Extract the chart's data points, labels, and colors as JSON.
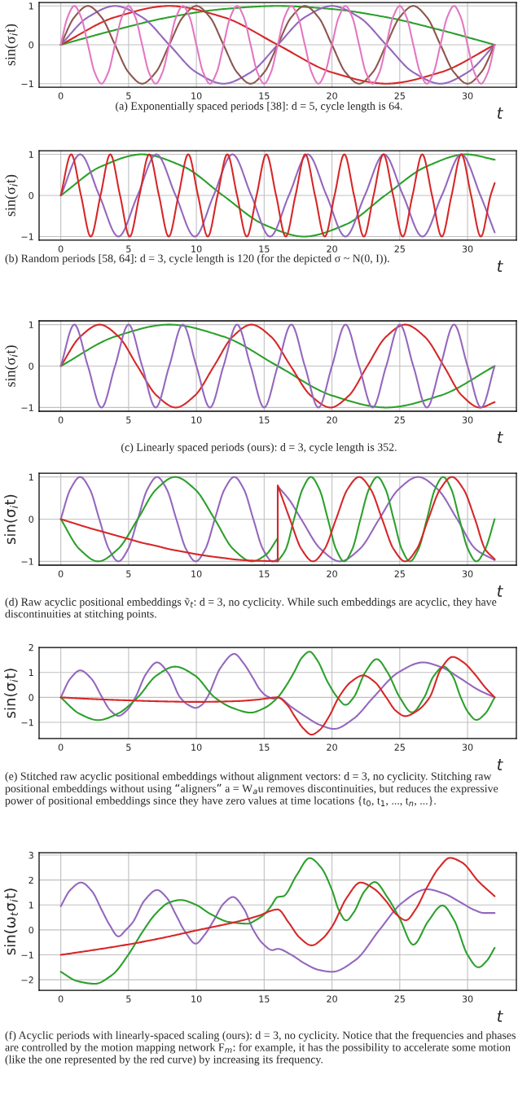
{
  "chart_data": [
    {
      "type": "line",
      "xlabel": "t",
      "ylabel": "sin(σ$_{i}$t)",
      "xlim": [
        -1.6,
        33.6
      ],
      "xticks": [
        0,
        5,
        10,
        15,
        20,
        25,
        30
      ],
      "ylim": [
        -1.09,
        1.09
      ],
      "yticks": [
        -1,
        0,
        1
      ],
      "grid": true,
      "annotations": [
        "(a) Exponentially spaced periods [38]: d = 5, cycle length is 64."
      ],
      "series": [
        {
          "color": "#2ca02c",
          "x": [
            0,
            4,
            8,
            12,
            16,
            20,
            24,
            28,
            32
          ],
          "values": [
            0,
            0.38,
            0.71,
            0.92,
            1,
            0.92,
            0.71,
            0.38,
            0
          ]
        },
        {
          "color": "#d62728",
          "x": [
            0,
            4,
            8,
            12,
            16,
            20,
            24,
            28,
            32
          ],
          "values": [
            0,
            0.71,
            1,
            0.71,
            0,
            -0.71,
            -1,
            -0.71,
            0
          ]
        },
        {
          "color": "#9467bd",
          "x": [
            0,
            2,
            4,
            6,
            8,
            10,
            12,
            14,
            16,
            18,
            20,
            22,
            24,
            26,
            28,
            30,
            32
          ],
          "values": [
            0,
            0.71,
            1,
            0.71,
            0,
            -0.71,
            -1,
            -0.71,
            0,
            0.71,
            1,
            0.71,
            0,
            -0.71,
            -1,
            -0.71,
            0
          ]
        },
        {
          "color": "#8c564b",
          "x": [
            0,
            1,
            2,
            3,
            4,
            5,
            6,
            7,
            8,
            9,
            10,
            11,
            12,
            13,
            14,
            15,
            16,
            17,
            18,
            19,
            20,
            21,
            22,
            23,
            24,
            25,
            26,
            27,
            28,
            29,
            30,
            31,
            32
          ],
          "values": [
            0,
            0.71,
            1,
            0.71,
            0,
            -0.71,
            -1,
            -0.71,
            0,
            0.71,
            1,
            0.71,
            0,
            -0.71,
            -1,
            -0.71,
            0,
            0.71,
            1,
            0.71,
            0,
            -0.71,
            -1,
            -0.71,
            0,
            0.71,
            1,
            0.71,
            0,
            -0.71,
            -1,
            -0.71,
            0
          ]
        },
        {
          "color": "#e377c2",
          "x": [
            0,
            0.5,
            1,
            1.5,
            2,
            2.5,
            3,
            3.5,
            4,
            4.5,
            5,
            5.5,
            6,
            6.5,
            7,
            7.5,
            8,
            8.5,
            9,
            9.5,
            10,
            10.5,
            11,
            11.5,
            12,
            12.5,
            13,
            13.5,
            14,
            14.5,
            15,
            15.5,
            16,
            16.5,
            17,
            17.5,
            18,
            18.5,
            19,
            19.5,
            20,
            20.5,
            21,
            21.5,
            22,
            22.5,
            23,
            23.5,
            24,
            24.5,
            25,
            25.5,
            26,
            26.5,
            27,
            27.5,
            28,
            28.5,
            29,
            29.5,
            30,
            30.5,
            31,
            31.5,
            32
          ],
          "values": [
            0,
            0.71,
            1,
            0.71,
            0,
            -0.71,
            -1,
            -0.71,
            0,
            0.71,
            1,
            0.71,
            0,
            -0.71,
            -1,
            -0.71,
            0,
            0.71,
            1,
            0.71,
            0,
            -0.71,
            -1,
            -0.71,
            0,
            0.71,
            1,
            0.71,
            0,
            -0.71,
            -1,
            -0.71,
            0,
            0.71,
            1,
            0.71,
            0,
            -0.71,
            -1,
            -0.71,
            0,
            0.71,
            1,
            0.71,
            0,
            -0.71,
            -1,
            -0.71,
            0,
            0.71,
            1,
            0.71,
            0,
            -0.71,
            -1,
            -0.71,
            0,
            0.71,
            1,
            0.71,
            0,
            -0.71,
            -1,
            -0.71,
            0
          ]
        }
      ]
    },
    {
      "type": "line",
      "xlabel": "t",
      "ylabel": "sin(σ$_{i}$t)",
      "xlim": [
        -1.6,
        33.6
      ],
      "xticks": [
        0,
        5,
        10,
        15,
        20,
        25,
        30
      ],
      "ylim": [
        -1.09,
        1.09
      ],
      "yticks": [
        -1,
        0,
        1
      ],
      "grid": true,
      "annotations": [
        "(b) Random periods [58, 64]: d = 3, cycle length is 120 (for the depicted σ ~ N(0, I))."
      ],
      "series": [
        {
          "color": "#2ca02c",
          "x": [
            0,
            3,
            5.98,
            9,
            11.96,
            15,
            17.94,
            21,
            23.92,
            27,
            29.9,
            32
          ],
          "values": [
            0,
            0.71,
            1,
            0.71,
            0,
            -0.71,
            -1,
            -0.71,
            0,
            0.71,
            1,
            0.87
          ]
        },
        {
          "color": "#9467bd",
          "x": [
            0,
            1.43,
            2.84,
            4.25,
            5.66,
            7.05,
            8.47,
            9.88,
            11.27,
            12.66,
            14.05,
            15.43,
            16.82,
            18.21,
            19.6,
            20.99,
            22.42,
            23.84,
            25.25,
            26.67,
            28.1,
            29.54,
            30.95,
            32
          ],
          "values": [
            0,
            1,
            0,
            -1,
            0,
            1,
            0,
            -1,
            0,
            1,
            0,
            -1,
            0,
            1,
            0,
            -1,
            0,
            1,
            0,
            -1,
            0,
            1,
            0,
            -0.9
          ]
        },
        {
          "color": "#d62728",
          "x": [
            0,
            0.77,
            1.49,
            2.21,
            2.93,
            3.65,
            4.37,
            5.08,
            5.8,
            6.52,
            7.24,
            7.96,
            8.68,
            9.4,
            10.12,
            10.84,
            11.56,
            12.28,
            13.0,
            13.72,
            14.44,
            15.16,
            15.88,
            16.59,
            17.31,
            18.03,
            18.75,
            19.47,
            20.19,
            20.91,
            21.63,
            22.35,
            23.07,
            23.79,
            24.51,
            25.22,
            25.94,
            26.66,
            27.38,
            28.1,
            28.82,
            29.54,
            30.26,
            30.98,
            31.7,
            32
          ],
          "values": [
            0,
            1,
            0,
            -1,
            0,
            1,
            0,
            -1,
            0,
            1,
            0,
            -1,
            0,
            1,
            0,
            -1,
            0,
            1,
            0,
            -1,
            0,
            1,
            0,
            -1,
            0,
            1,
            0,
            -1,
            0,
            1,
            0,
            -1,
            0,
            1,
            0,
            -1,
            0,
            1,
            0,
            -1,
            0,
            1,
            0,
            -1,
            0,
            0.3
          ]
        }
      ]
    },
    {
      "type": "line",
      "xlabel": "t",
      "ylabel": "sin(σ$_{i}$t)",
      "xlim": [
        -1.6,
        33.6
      ],
      "xticks": [
        0,
        5,
        10,
        15,
        20,
        25,
        30
      ],
      "ylim": [
        -1.09,
        1.09
      ],
      "yticks": [
        -1,
        0,
        1
      ],
      "grid": true,
      "annotations": [
        "(c) Linearly spaced periods (ours): d = 3, cycle length is 352."
      ],
      "series": [
        {
          "color": "#2ca02c",
          "x": [
            0,
            4,
            8,
            12,
            16,
            20,
            24,
            28,
            32
          ],
          "values": [
            0,
            0.71,
            1,
            0.71,
            0,
            -0.71,
            -1,
            -0.71,
            0
          ]
        },
        {
          "color": "#d62728",
          "x": [
            0,
            1.44,
            2.87,
            4.26,
            5.65,
            7.07,
            8.48,
            9.89,
            11.3,
            12.68,
            14.06,
            15.5,
            16.95,
            18.43,
            19.9,
            21.25,
            22.6,
            24.0,
            25.4,
            26.83,
            28.25,
            29.58,
            30.9,
            32
          ],
          "values": [
            0,
            0.71,
            1,
            0.71,
            0,
            -0.71,
            -1,
            -0.71,
            0,
            0.71,
            1,
            0.71,
            0,
            -0.71,
            -1,
            -0.71,
            0,
            0.71,
            1,
            0.71,
            0,
            -0.71,
            -1,
            -0.87
          ]
        },
        {
          "color": "#9467bd",
          "x": [
            0,
            1,
            2,
            3,
            4,
            5,
            6,
            7,
            8,
            9,
            10,
            11,
            12,
            13,
            14,
            15,
            16,
            17,
            18,
            19,
            20,
            21,
            22,
            23,
            24,
            25,
            26,
            27,
            28,
            29,
            30,
            31,
            32
          ],
          "values": [
            0,
            1,
            0,
            -1,
            0,
            1,
            0,
            -1,
            0,
            1,
            0,
            -1,
            0,
            1,
            0,
            -1,
            0,
            1,
            0,
            -1,
            0,
            1,
            0,
            -1,
            0,
            1,
            0,
            -1,
            0,
            1,
            0,
            -1,
            0
          ]
        }
      ]
    },
    {
      "type": "line",
      "xlabel": "t",
      "ylabel": "sin(σ$_{i}$t)",
      "xlim": [
        -1.6,
        33.6
      ],
      "xticks": [
        0,
        5,
        10,
        15,
        20,
        25,
        30
      ],
      "ylim": [
        -1.09,
        1.09
      ],
      "yticks": [
        -1,
        0,
        1
      ],
      "grid": true,
      "annotations": [
        "(d) Raw acyclic positional embeddings ṽ$_{t}$: d = 3, no cyclicity. While such embeddings are acyclic, they have discontinuities at stitching points."
      ],
      "series": [
        {
          "color": "#9467bd",
          "x": [
            0,
            0.71,
            1.43,
            2.14,
            2.84,
            3.55,
            4.25,
            4.96,
            5.68,
            6.39,
            7.1,
            7.81,
            8.52,
            9.24,
            9.95,
            10.66,
            11.36,
            12.08,
            12.8,
            13.5,
            14.2,
            14.91,
            15.62,
            16,
            16,
            16.87,
            17.73,
            19.17,
            20.6,
            22.04,
            23.48,
            24.92,
            26.35,
            27.79,
            29.23,
            30.6,
            32
          ],
          "values": [
            0,
            0.71,
            1,
            0.71,
            0,
            -0.71,
            -1,
            -0.71,
            0,
            0.71,
            1,
            0.71,
            0,
            -0.71,
            -1,
            -0.71,
            0,
            0.71,
            1,
            0.71,
            0,
            -0.71,
            -1,
            -0.95,
            0.78,
            0.45,
            0,
            -0.71,
            -1,
            -0.71,
            0,
            0.71,
            1,
            0.71,
            0,
            -0.71,
            -0.97
          ]
        },
        {
          "color": "#2ca02c",
          "x": [
            0,
            1.38,
            2.75,
            4.21,
            5.67,
            7.05,
            8.43,
            9.89,
            11.35,
            12.72,
            14.1,
            15.1,
            16,
            16,
            16.6,
            17.2,
            17.83,
            18.45,
            19.07,
            19.7,
            20.3,
            20.9,
            21.5,
            22.1,
            22.73,
            23.35,
            23.95,
            24.55,
            25.15,
            25.75,
            26.38,
            27,
            27.6,
            28.2,
            28.8,
            29.4,
            30.03,
            30.65,
            31.3,
            32
          ],
          "values": [
            0,
            -0.71,
            -1,
            -0.71,
            0,
            0.71,
            1,
            0.71,
            0,
            -0.71,
            -1,
            -0.85,
            -0.45,
            -1,
            -0.71,
            0,
            0.71,
            1,
            0.71,
            0,
            -0.71,
            -1,
            -0.71,
            0,
            0.71,
            1,
            0.71,
            0,
            -0.71,
            -1,
            -0.71,
            0,
            0.71,
            1,
            0.71,
            0,
            -0.71,
            -1,
            -0.71,
            0
          ]
        },
        {
          "color": "#d62728",
          "x": [
            0,
            1,
            2,
            3,
            4,
            5,
            6,
            7,
            8,
            9,
            10,
            11,
            12,
            13,
            14,
            15,
            16,
            16,
            16.9,
            17.75,
            18.6,
            19.45,
            20.3,
            21.15,
            22.0,
            22.85,
            23.7,
            24.55,
            25.4,
            26.25,
            27.1,
            27.98,
            28.85,
            29.7,
            30.55,
            31.3,
            32
          ],
          "values": [
            0,
            -0.1,
            -0.2,
            -0.29,
            -0.38,
            -0.47,
            -0.56,
            -0.63,
            -0.71,
            -0.77,
            -0.83,
            -0.88,
            -0.92,
            -0.96,
            -0.98,
            -0.99,
            -1,
            0.8,
            0,
            -0.71,
            -1,
            -0.71,
            0,
            0.71,
            1,
            0.71,
            0,
            -0.71,
            -1,
            -0.71,
            0,
            0.71,
            1,
            0.71,
            0,
            -0.71,
            -0.95
          ]
        }
      ]
    },
    {
      "type": "line",
      "xlabel": "t",
      "ylabel": "sin(σ$_{i}$t)",
      "xlim": [
        -1.6,
        33.6
      ],
      "xticks": [
        0,
        5,
        10,
        15,
        20,
        25,
        30
      ],
      "ylim": [
        -1.65,
        2.0
      ],
      "yticks": [
        -1,
        0,
        1,
        2
      ],
      "grid": true,
      "annotations": [
        "(e) Stitched raw acyclic positional embeddings without alignment vectors: d = 3, no cyclicity. Stitching raw positional embeddings without using “aligners” a = W$_{a}$u removes discontinuities, but reduces the expressive power of positional embeddings since they have zero values at time locations {t$_{0}$, t$_{1}$, ..., t$_{n}$, ...}."
      ],
      "series": [
        {
          "color": "#9467bd",
          "x": [
            0,
            0.7,
            1.43,
            2.25,
            3.05,
            3.65,
            4.25,
            4.9,
            5.5,
            6.3,
            7.1,
            7.95,
            8.8,
            9.4,
            9.95,
            10.4,
            10.8,
            11.8,
            12.8,
            13.5,
            14.2,
            14.7,
            15.2,
            15.7,
            16,
            17,
            18,
            19.1,
            20.15,
            21.6,
            23.05,
            24.9,
            26.7,
            28.1,
            29.5,
            30.8,
            32
          ],
          "values": [
            0,
            0.75,
            1.08,
            0.75,
            0,
            -0.52,
            -0.74,
            -0.5,
            0,
            0.95,
            1.4,
            0.95,
            0,
            -0.3,
            -0.42,
            -0.3,
            0,
            1.2,
            1.74,
            1.35,
            0.75,
            0.3,
            0.05,
            -0.05,
            0,
            -0.38,
            -0.75,
            -1.1,
            -1.26,
            -0.85,
            0,
            1.0,
            1.4,
            1.2,
            0.75,
            0.3,
            0
          ]
        },
        {
          "color": "#2ca02c",
          "x": [
            0,
            1.37,
            2.75,
            4.2,
            5.67,
            7.05,
            8.43,
            9.9,
            11.35,
            12.7,
            14.0,
            15.0,
            16,
            16.6,
            17.2,
            17.8,
            18.35,
            18.9,
            19.7,
            20.4,
            21.0,
            21.6,
            22.45,
            23.3,
            24.1,
            25.0,
            25.9,
            26.8,
            27.5,
            28.25,
            28.9,
            29.5,
            30.05,
            30.65,
            31.3,
            32
          ],
          "values": [
            0,
            -0.65,
            -0.91,
            -0.65,
            0,
            0.87,
            1.23,
            0.87,
            0,
            -0.43,
            -0.61,
            -0.43,
            0,
            0.45,
            1.0,
            1.6,
            1.83,
            1.5,
            0.6,
            0,
            -0.3,
            0,
            1.0,
            1.53,
            1.0,
            0,
            -0.6,
            0,
            0.85,
            1.23,
            0.85,
            0,
            -0.6,
            -0.9,
            -0.65,
            0
          ]
        },
        {
          "color": "#d62728",
          "x": [
            0,
            2.5,
            5,
            7.5,
            10,
            13,
            14.5,
            16,
            16.7,
            17.3,
            17.9,
            18.5,
            19.1,
            19.8,
            20.5,
            21.4,
            22.3,
            23.15,
            24.0,
            24.7,
            25.4,
            26.3,
            27.2,
            28.05,
            28.9,
            29.7,
            30.5,
            31.3,
            32
          ],
          "values": [
            0,
            -0.07,
            -0.12,
            -0.16,
            -0.18,
            -0.15,
            -0.09,
            0,
            -0.3,
            -0.8,
            -1.25,
            -1.49,
            -1.3,
            -0.75,
            0,
            0.62,
            0.88,
            0.62,
            0,
            -0.53,
            -0.75,
            -0.53,
            0,
            1.15,
            1.62,
            1.4,
            0.95,
            0.4,
            0
          ]
        }
      ]
    },
    {
      "type": "line",
      "xlabel": "t",
      "ylabel": "sin(ω$_{t}$σ$_{i}$t)",
      "xlim": [
        -1.6,
        33.6
      ],
      "xticks": [
        0,
        5,
        10,
        15,
        20,
        25,
        30
      ],
      "ylim": [
        -2.42,
        3.1
      ],
      "yticks": [
        -2,
        -1,
        0,
        1,
        2,
        3
      ],
      "grid": true,
      "annotations": [
        "(f) Acyclic periods with linearly-spaced scaling (ours): d = 3, no cyclicity. Notice that the frequencies and phases are controlled by the motion mapping network F$_{m}$: for example, it has the possibility to accelerate some motion (like the one represented by the red curve) by increasing its frequency."
      ],
      "series": [
        {
          "color": "#9467bd",
          "x": [
            0,
            0.7,
            1.5,
            2.3,
            3,
            3.6,
            4.25,
            4.8,
            5.3,
            6.2,
            7.1,
            7.8,
            8.5,
            9.2,
            9.95,
            10.6,
            11.3,
            12,
            12.7,
            13.5,
            14.2,
            14.9,
            15.6,
            16,
            17,
            18,
            19,
            20,
            21.75,
            23.5,
            25.2,
            27,
            28.3,
            29.5,
            30.5,
            31.2,
            32
          ],
          "values": [
            0.95,
            1.6,
            1.9,
            1.55,
            0.82,
            0.2,
            -0.26,
            0,
            0.3,
            1.2,
            1.6,
            1.3,
            0.6,
            -0.1,
            -0.55,
            -0.2,
            0.4,
            1.05,
            1.32,
            0.85,
            0,
            -0.55,
            -0.81,
            -0.76,
            -1.0,
            -1.35,
            -1.6,
            -1.68,
            -1.2,
            0,
            1.1,
            1.63,
            1.45,
            1.1,
            0.8,
            0.68,
            0.68
          ]
        },
        {
          "color": "#2ca02c",
          "x": [
            0,
            1.2,
            2.5,
            3.8,
            5,
            6,
            7,
            8,
            8.84,
            10,
            11,
            12.4,
            13.8,
            14.4,
            15,
            15.5,
            16,
            16.4,
            17.4,
            18.35,
            19.2,
            20,
            20.5,
            21.05,
            21.6,
            22.4,
            23.15,
            24.1,
            25,
            26,
            27.1,
            28.15,
            29,
            30,
            30.8,
            31.4,
            32
          ],
          "values": [
            -1.68,
            -2.05,
            -2.16,
            -1.8,
            -0.98,
            -0.1,
            0.65,
            1.1,
            1.2,
            1.0,
            0.65,
            0.32,
            0.25,
            0.4,
            0.62,
            0.95,
            1.32,
            1.35,
            2.2,
            2.88,
            2.5,
            1.6,
            0.8,
            0.38,
            0.7,
            1.55,
            1.92,
            1.3,
            0.45,
            -0.59,
            0.35,
            0.98,
            0.4,
            -1.0,
            -1.5,
            -1.25,
            -0.72
          ]
        },
        {
          "color": "#d62728",
          "x": [
            0,
            2.5,
            5,
            7.5,
            10,
            13,
            14.5,
            16,
            16.8,
            17.6,
            18.5,
            19.3,
            20,
            21.1,
            22.1,
            23.1,
            24,
            24.7,
            25.45,
            26.2,
            27,
            27.9,
            28.7,
            29.6,
            30.8,
            32
          ],
          "values": [
            -1.0,
            -0.8,
            -0.58,
            -0.32,
            -0.02,
            0.33,
            0.55,
            0.82,
            0.3,
            -0.3,
            -0.62,
            -0.35,
            0.13,
            1.3,
            1.9,
            1.65,
            1.15,
            0.65,
            0.39,
            0.85,
            1.7,
            2.5,
            2.89,
            2.7,
            1.95,
            1.35
          ]
        }
      ]
    }
  ]
}
